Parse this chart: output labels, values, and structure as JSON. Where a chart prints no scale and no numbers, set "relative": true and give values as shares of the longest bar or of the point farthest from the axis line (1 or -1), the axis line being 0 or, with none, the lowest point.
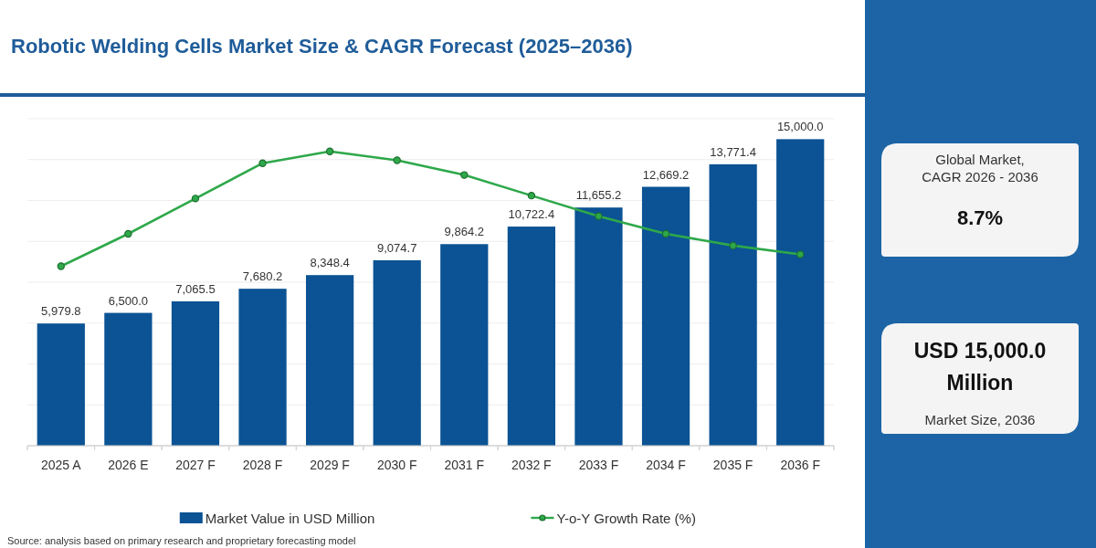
{
  "chart_data": [
    {
      "type": "bar",
      "title": "Robotic Welding Cells Market Size & CAGR Forecast (2025–2036)",
      "categories": [
        "2025 A",
        "2026 E",
        "2027 F",
        "2028 F",
        "2029 F",
        "2030 F",
        "2031 F",
        "2032 F",
        "2033 F",
        "2034 F",
        "2035 F",
        "2036 F"
      ],
      "series": [
        {
          "name": "Market Value in USD Million",
          "type": "bar",
          "color": "#0b5394",
          "values": [
            5979.8,
            6500.0,
            7065.5,
            7680.2,
            8348.4,
            9074.7,
            9864.2,
            10722.4,
            11655.2,
            12669.2,
            13771.4,
            15000.0
          ],
          "value_labels": [
            "5,979.8",
            "6,500.0",
            "7,065.5",
            "7,680.2",
            "8,348.4",
            "9,074.7",
            "9,864.2",
            "10,722.4",
            "11,655.2",
            "12,669.2",
            "13,771.4",
            "15,000.0"
          ]
        }
      ],
      "ylim": [
        0,
        16000
      ],
      "yticks": [
        {
          "value": 0,
          "label": null
        },
        {
          "value": 2000,
          "label": null
        },
        {
          "value": 4000,
          "label": null
        },
        {
          "value": 6000,
          "label": null
        },
        {
          "value": 8000,
          "label": null
        },
        {
          "value": 10000,
          "label": null
        },
        {
          "value": 12000,
          "label": null
        },
        {
          "value": 14000,
          "label": null
        },
        {
          "value": 16000,
          "label": null
        }
      ],
      "grid": "y",
      "tick_labels": "x",
      "legend": "bottom",
      "annotations": [
        "Source: analysis based on primary research and proprietary forecasting model"
      ]
    },
    {
      "type": "line",
      "relative": true,
      "categories": [
        null,
        null,
        null,
        null,
        null,
        null,
        null,
        null,
        null,
        null,
        null,
        null
      ],
      "series": [
        {
          "name": "Y-o-Y Growth Rate (%)",
          "type": "line",
          "color": "#2ea84a",
          "values": [
            0.61,
            0.72,
            0.84,
            0.96,
            1,
            0.97,
            0.92,
            0.85,
            0.78,
            0.72,
            0.68,
            0.65
          ]
        }
      ],
      "marker": "circle",
      "legend": "bottom"
    },
    {
      "type": "other",
      "title": "8.7%",
      "annotations": [
        "Global Market, CAGR 2026 - 2036"
      ]
    },
    {
      "type": "other",
      "title": "USD 15,000.0 Million",
      "annotations": [
        "Market Size, 2036"
      ]
    }
  ]
}
